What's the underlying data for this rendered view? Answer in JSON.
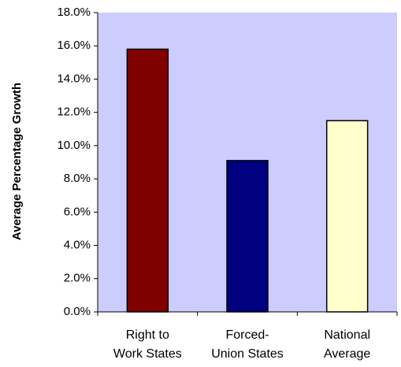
{
  "chart_data": {
    "type": "bar",
    "y_label": "Average Percentage Growth",
    "categories": [
      [
        "Right to",
        "Work States"
      ],
      [
        "Forced-",
        "Union States"
      ],
      [
        "National",
        "Average"
      ]
    ],
    "values": [
      15.8,
      9.1,
      11.5
    ],
    "colors": [
      "#800000",
      "#000080",
      "#ffffcc"
    ],
    "plot_background": "#ccccff",
    "ylim": [
      0,
      18
    ],
    "yticks": [
      {
        "value": 0,
        "label": "0.0%"
      },
      {
        "value": 2,
        "label": "2.0%"
      },
      {
        "value": 4,
        "label": "4.0%"
      },
      {
        "value": 6,
        "label": "6.0%"
      },
      {
        "value": 8,
        "label": "8.0%"
      },
      {
        "value": 10,
        "label": "10.0%"
      },
      {
        "value": 12,
        "label": "12.0%"
      },
      {
        "value": 14,
        "label": "14.0%"
      },
      {
        "value": 16,
        "label": "16.0%"
      },
      {
        "value": 18,
        "label": "18.0%"
      }
    ],
    "grid": false
  }
}
